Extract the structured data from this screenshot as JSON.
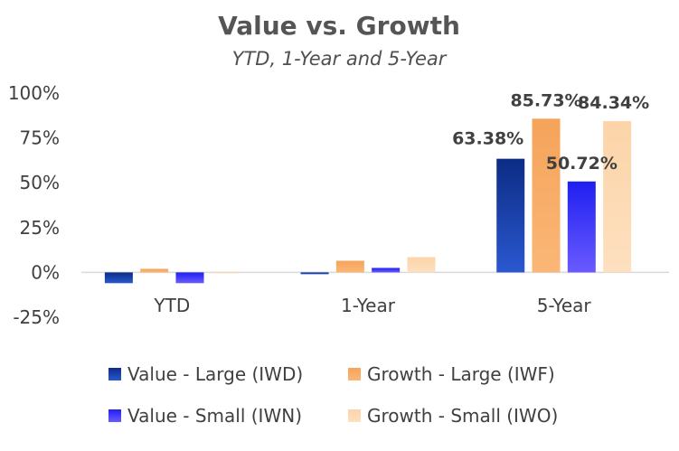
{
  "chart_data": {
    "type": "bar",
    "title": "Value vs. Growth",
    "subtitle": "YTD, 1-Year and 5-Year",
    "categories": [
      "YTD",
      "1-Year",
      "5-Year"
    ],
    "ylim": [
      -25,
      100
    ],
    "yticks": [
      100,
      75,
      50,
      25,
      0,
      -25
    ],
    "ytick_labels": [
      "100%",
      "75%",
      "50%",
      "25%",
      "0%",
      "-25%"
    ],
    "grid": false,
    "legend_position": "bottom",
    "series": [
      {
        "name": "Value - Large (IWD)",
        "values": [
          -6,
          -1,
          63.38
        ],
        "color": "#0c2c84",
        "color2": "#2a58d0",
        "label": "63.38%"
      },
      {
        "name": "Growth - Large (IWF)",
        "values": [
          2,
          6.5,
          85.73
        ],
        "color": "#f5a35a",
        "color2": "#fbb777",
        "label": "85.73%"
      },
      {
        "name": "Value - Small (IWN)",
        "values": [
          -6,
          2.5,
          50.72
        ],
        "color": "#1f1ff0",
        "color2": "#6a5bff",
        "label": "50.72%"
      },
      {
        "name": "Growth - Small (IWO)",
        "values": [
          -0.5,
          8.5,
          84.34
        ],
        "color": "#fcd4a8",
        "color2": "#fde0c0",
        "label": "84.34%"
      }
    ]
  }
}
